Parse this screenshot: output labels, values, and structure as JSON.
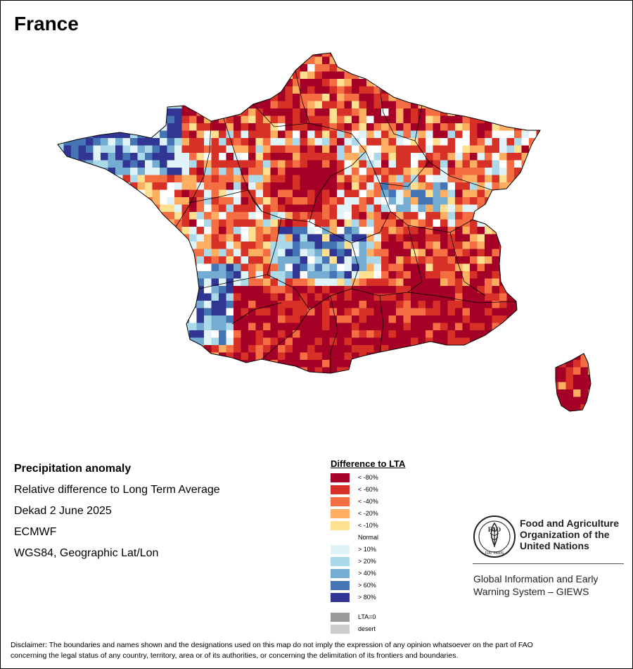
{
  "map": {
    "title": "France",
    "colors": {
      "lt80": "#a50026",
      "lt60": "#d73027",
      "lt40": "#f46d43",
      "lt20": "#fdae61",
      "lt10": "#fee090",
      "normal": "#ffffff",
      "gt10": "#e0f3f8",
      "gt20": "#abd9e9",
      "gt40": "#74add1",
      "gt60": "#4575b4",
      "gt80": "#313695",
      "lta0": "#999999",
      "desert": "#cccccc",
      "boundary": "#000000"
    }
  },
  "info": {
    "heading": "Precipitation anomaly",
    "line1": "Relative difference to Long Term Average",
    "line2": "Dekad 2 June 2025",
    "line3": "ECMWF",
    "line4": "WGS84, Geographic Lat/Lon"
  },
  "legend": {
    "title": "Difference to LTA",
    "items": [
      {
        "label": "< -80%",
        "color": "#a50026"
      },
      {
        "label": "< -60%",
        "color": "#d73027"
      },
      {
        "label": "< -40%",
        "color": "#f46d43"
      },
      {
        "label": "< -20%",
        "color": "#fdae61"
      },
      {
        "label": "< -10%",
        "color": "#fee090"
      },
      {
        "label": "Normal",
        "color": "#ffffff"
      },
      {
        "label": "> 10%",
        "color": "#e0f3f8"
      },
      {
        "label": "> 20%",
        "color": "#abd9e9"
      },
      {
        "label": "> 40%",
        "color": "#74add1"
      },
      {
        "label": "> 60%",
        "color": "#4575b4"
      },
      {
        "label": "> 80%",
        "color": "#313695"
      },
      {
        "label": "LTA=0",
        "color": "#999999"
      },
      {
        "label": "desert",
        "color": "#cccccc"
      }
    ]
  },
  "logo": {
    "org_line1": "Food and Agriculture",
    "org_line2": "Organization of the",
    "org_line3": "United Nations",
    "system_line1": "Global Information and Early",
    "system_line2": "Warning System – GIEWS",
    "emblem_letters": "FAO",
    "motto": "FIAT PANIS"
  },
  "disclaimer": {
    "line1": "Disclaimer: The boundaries and names shown and the designations used on this map do not imply the expression of any opinion whatsoever on the part of FAO",
    "line2": "concerning the legal status of any country, territory, area or of its authorities, or concerning the delimitation of its frontiers and boundaries."
  }
}
